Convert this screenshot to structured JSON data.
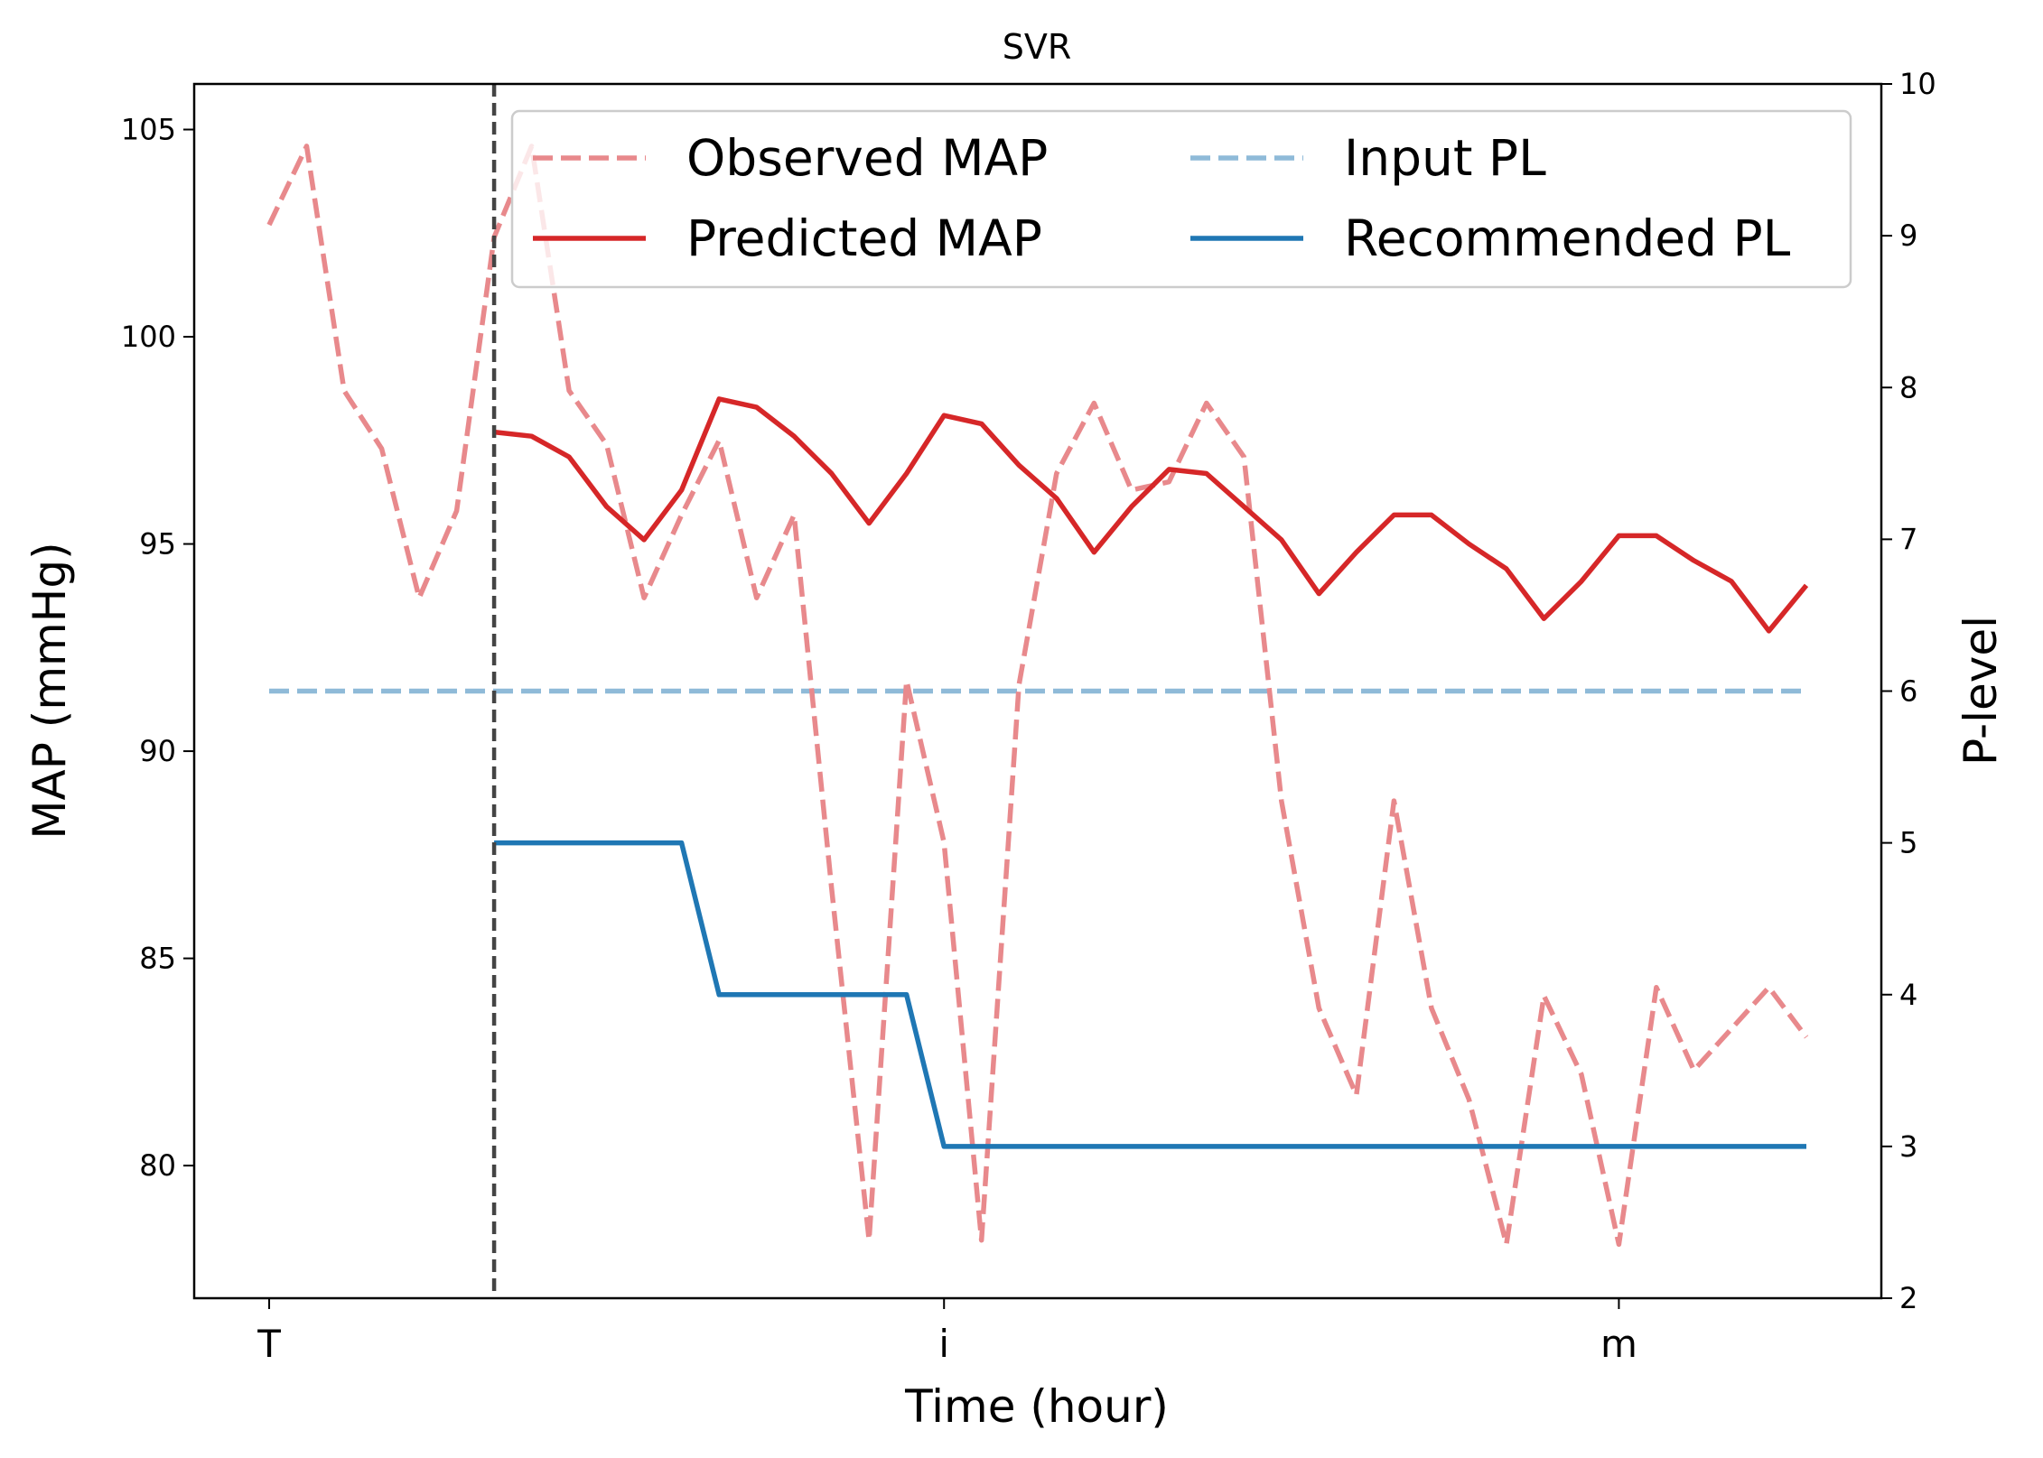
{
  "chart_data": {
    "type": "line",
    "title": "SVR",
    "xlabel": "Time (hour)",
    "ylabel_left": "MAP (mmHg)",
    "ylabel_right": "P-level",
    "x_ticks": [
      {
        "x": 0,
        "label": "T"
      },
      {
        "x": 18,
        "label": "i"
      },
      {
        "x": 36,
        "label": "m"
      }
    ],
    "xlim": [
      -2,
      43
    ],
    "ylim_left": [
      76.8,
      106.1
    ],
    "ylim_right": [
      2,
      10
    ],
    "yticks_left": [
      80,
      85,
      90,
      95,
      100,
      105
    ],
    "yticks_right": [
      2,
      3,
      4,
      5,
      6,
      7,
      8,
      9,
      10
    ],
    "prediction_start_x": 6,
    "legend_location": "upper right",
    "series": [
      {
        "name": "Observed MAP",
        "axis": "left",
        "color": "#e8898c",
        "style": "dashed",
        "x": [
          0,
          1,
          2,
          3,
          4,
          5,
          6,
          7,
          8,
          9,
          10,
          11,
          12,
          13,
          14,
          15,
          16,
          17,
          18,
          19,
          20,
          21,
          22,
          23,
          24,
          25,
          26,
          27,
          28,
          29,
          30,
          31,
          32,
          33,
          34,
          35,
          36,
          37,
          38,
          39,
          40,
          41
        ],
        "y": [
          102.7,
          104.6,
          98.7,
          97.3,
          93.7,
          95.8,
          102.4,
          104.6,
          98.7,
          97.4,
          93.7,
          95.7,
          97.5,
          93.7,
          95.7,
          86.7,
          78.2,
          91.7,
          87.8,
          78.2,
          91.6,
          96.7,
          98.4,
          96.3,
          96.5,
          98.4,
          97.1,
          88.8,
          83.8,
          81.7,
          88.8,
          83.8,
          81.6,
          78.1,
          84.1,
          82.2,
          78.1,
          84.3,
          82.3,
          83.3,
          84.3,
          83.1
        ]
      },
      {
        "name": "Predicted MAP",
        "axis": "left",
        "color": "#d62728",
        "style": "solid",
        "x": [
          6,
          7,
          8,
          9,
          10,
          11,
          12,
          13,
          14,
          15,
          16,
          17,
          18,
          19,
          20,
          21,
          22,
          23,
          24,
          25,
          26,
          27,
          28,
          29,
          30,
          31,
          32,
          33,
          34,
          35,
          36,
          37,
          38,
          39,
          40,
          41
        ],
        "y": [
          97.7,
          97.6,
          97.1,
          95.9,
          95.1,
          96.3,
          98.5,
          98.3,
          97.6,
          96.7,
          95.5,
          96.7,
          98.1,
          97.9,
          96.9,
          96.1,
          94.8,
          95.9,
          96.8,
          96.7,
          95.9,
          95.1,
          93.8,
          94.8,
          95.7,
          95.7,
          95.0,
          94.4,
          93.2,
          94.1,
          95.2,
          95.2,
          94.6,
          94.1,
          92.9,
          94.0
        ]
      },
      {
        "name": "Input PL",
        "axis": "right",
        "color": "#8fbad8",
        "style": "dashed",
        "x": [
          0,
          41
        ],
        "y": [
          6,
          6
        ]
      },
      {
        "name": "Recommended PL",
        "axis": "right",
        "color": "#1f77b4",
        "style": "solid",
        "x": [
          6,
          11,
          12,
          17,
          18,
          41
        ],
        "y": [
          5,
          5,
          4,
          4,
          3,
          3
        ]
      }
    ],
    "legend_entries": [
      "Observed MAP",
      "Input PL",
      "Predicted MAP",
      "Recommended PL"
    ]
  }
}
